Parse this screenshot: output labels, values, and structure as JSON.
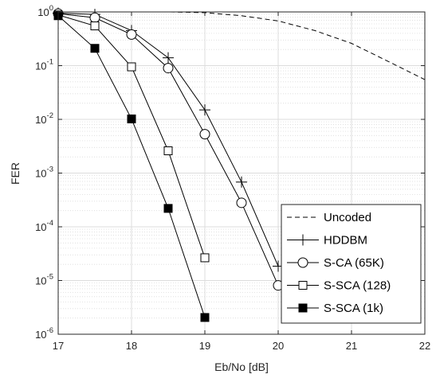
{
  "chart_data": {
    "type": "line",
    "xlabel": "Eb/No [dB]",
    "ylabel": "FER",
    "xlim": [
      17,
      22
    ],
    "ylim": [
      1e-06,
      1
    ],
    "yscale": "log",
    "grid": true,
    "legend_position": "bottom-right",
    "x_ticks": [
      "17",
      "18",
      "19",
      "20",
      "21",
      "22"
    ],
    "y_ticks": [
      {
        "base": "10",
        "exp": "-6",
        "value": 1e-06
      },
      {
        "base": "10",
        "exp": "-5",
        "value": 1e-05
      },
      {
        "base": "10",
        "exp": "-4",
        "value": 0.0001
      },
      {
        "base": "10",
        "exp": "-3",
        "value": 0.001
      },
      {
        "base": "10",
        "exp": "-2",
        "value": 0.01
      },
      {
        "base": "10",
        "exp": "-1",
        "value": 0.1
      },
      {
        "base": "10",
        "exp": "0",
        "value": 1
      }
    ],
    "series": [
      {
        "name": "Uncoded",
        "style": "dashed",
        "marker": "none",
        "x": [
          17,
          17.5,
          18,
          18.5,
          19,
          19.5,
          20,
          20.5,
          21,
          21.5,
          22
        ],
        "y": [
          1.0,
          1.0,
          1.0,
          1.0,
          0.97,
          0.85,
          0.68,
          0.45,
          0.26,
          0.12,
          0.055
        ]
      },
      {
        "name": "HDDBM",
        "style": "solid",
        "marker": "plus",
        "x": [
          17,
          17.5,
          18,
          18.5,
          19,
          19.5,
          20
        ],
        "y": [
          0.95,
          0.9,
          0.45,
          0.14,
          0.015,
          0.00068,
          1.85e-05
        ]
      },
      {
        "name": "S-CA (65K)",
        "style": "solid",
        "marker": "circle",
        "x": [
          17,
          17.5,
          18,
          18.5,
          19,
          19.5,
          20
        ],
        "y": [
          0.93,
          0.78,
          0.38,
          0.09,
          0.0053,
          0.00028,
          8.1e-06
        ]
      },
      {
        "name": "S-SCA (128)",
        "style": "solid",
        "marker": "square",
        "x": [
          17,
          17.5,
          18,
          18.5,
          19
        ],
        "y": [
          0.88,
          0.55,
          0.095,
          0.0026,
          2.65e-05
        ]
      },
      {
        "name": "S-SCA (1k)",
        "style": "solid",
        "marker": "filled-square",
        "x": [
          17,
          17.5,
          18,
          18.5,
          19
        ],
        "y": [
          0.85,
          0.21,
          0.0102,
          0.00022,
          2.05e-06
        ]
      }
    ],
    "colors": {
      "line": "#000000",
      "grid": "#dcdcdc",
      "axis": "#262626",
      "background": "#ffffff"
    }
  }
}
